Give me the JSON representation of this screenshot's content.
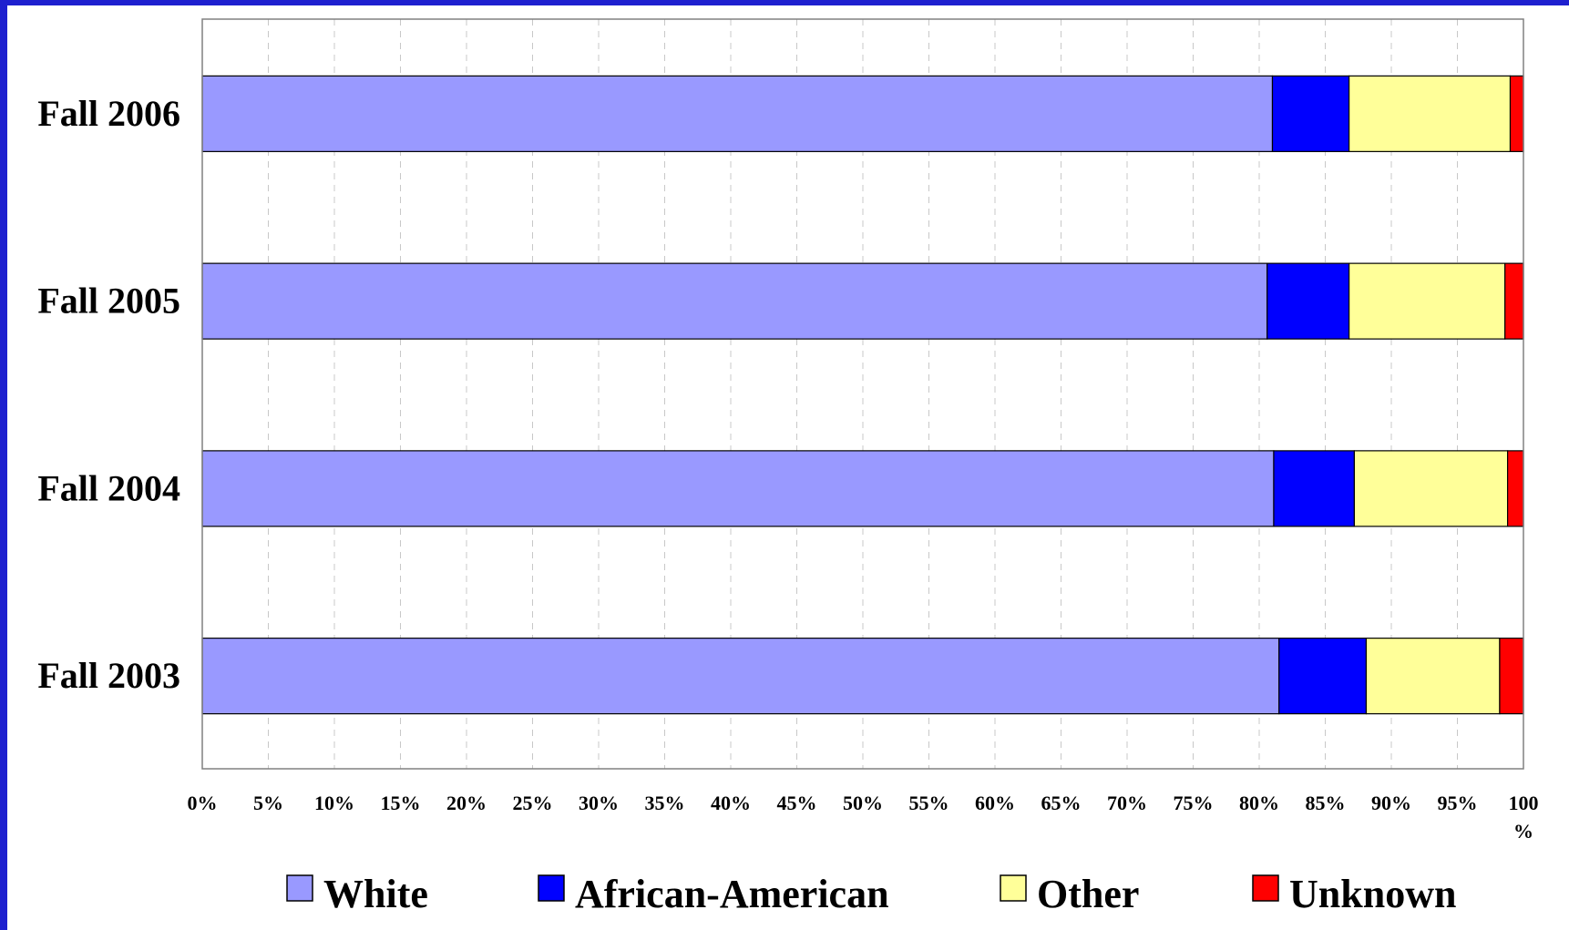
{
  "chart_data": {
    "type": "bar",
    "orientation": "horizontal",
    "stacked": true,
    "title": "",
    "xlabel": "",
    "ylabel": "",
    "categories": [
      "Fall 2006",
      "Fall 2005",
      "Fall 2004",
      "Fall 2003"
    ],
    "series": [
      {
        "name": "White",
        "color": "#9999ff",
        "values": [
          81.0,
          80.6,
          81.1,
          81.5
        ]
      },
      {
        "name": "African-American",
        "color": "#0000ff",
        "values": [
          5.8,
          6.2,
          6.1,
          6.6
        ]
      },
      {
        "name": "Other",
        "color": "#ffff99",
        "values": [
          12.2,
          11.8,
          11.6,
          10.1
        ]
      },
      {
        "name": "Unknown",
        "color": "#ff0000",
        "values": [
          1.0,
          1.4,
          1.2,
          1.8
        ]
      }
    ],
    "xlim": [
      0,
      100
    ],
    "x_ticks": [
      "0%",
      "5%",
      "10%",
      "15%",
      "20%",
      "25%",
      "30%",
      "35%",
      "40%",
      "45%",
      "50%",
      "55%",
      "60%",
      "65%",
      "70%",
      "75%",
      "80%",
      "85%",
      "90%",
      "95%",
      "100 %"
    ],
    "grid": "vertical dashed",
    "legend": "bottom"
  }
}
